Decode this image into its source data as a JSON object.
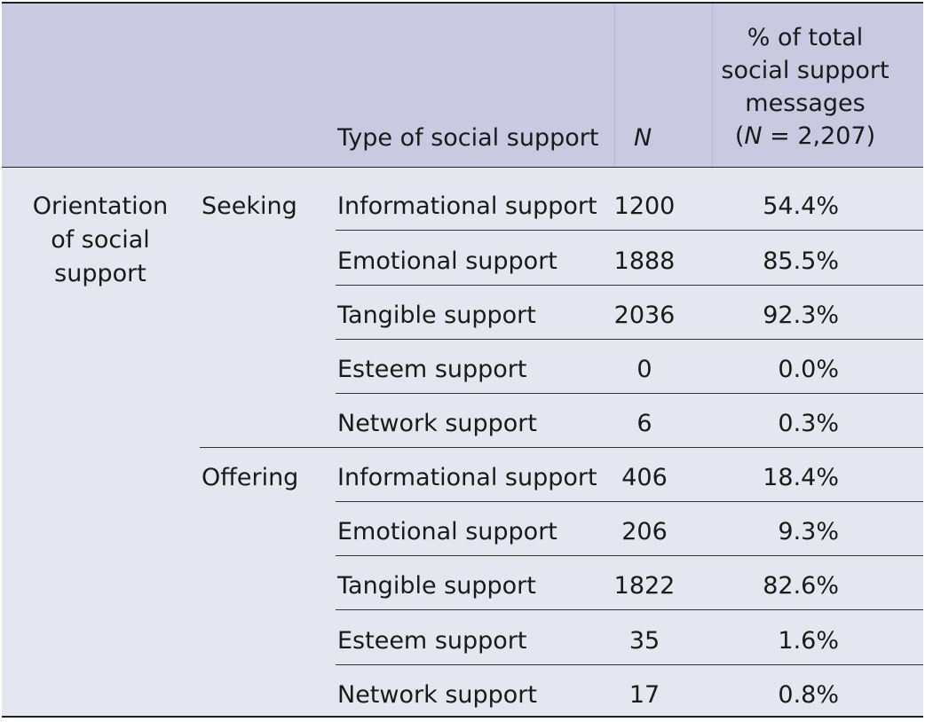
{
  "header": {
    "type_label": "Type of social support",
    "n_label": "N",
    "pct_label": [
      "% of total",
      "social support",
      "messages"
    ],
    "pct_n_prefix": "(",
    "pct_n_symbol": "N",
    "pct_n_suffix": " = 2,207)"
  },
  "orientation": [
    "Orientation",
    "of social",
    "support"
  ],
  "groups": [
    {
      "label": "Seeking",
      "rows": [
        {
          "type": "Informational support",
          "n": "1200",
          "pct": "54.4%"
        },
        {
          "type": "Emotional support",
          "n": "1888",
          "pct": "85.5%"
        },
        {
          "type": "Tangible support",
          "n": "2036",
          "pct": "92.3%"
        },
        {
          "type": "Esteem support",
          "n": "0",
          "pct": "0.0%"
        },
        {
          "type": "Network support",
          "n": "6",
          "pct": "0.3%"
        }
      ]
    },
    {
      "label": "Offering",
      "rows": [
        {
          "type": "Informational support",
          "n": "406",
          "pct": "18.4%"
        },
        {
          "type": "Emotional support",
          "n": "206",
          "pct": "9.3%"
        },
        {
          "type": "Tangible support",
          "n": "1822",
          "pct": "82.6%"
        },
        {
          "type": "Esteem support",
          "n": "35",
          "pct": "1.6%"
        },
        {
          "type": "Network support",
          "n": "17",
          "pct": "0.8%"
        }
      ]
    }
  ]
}
